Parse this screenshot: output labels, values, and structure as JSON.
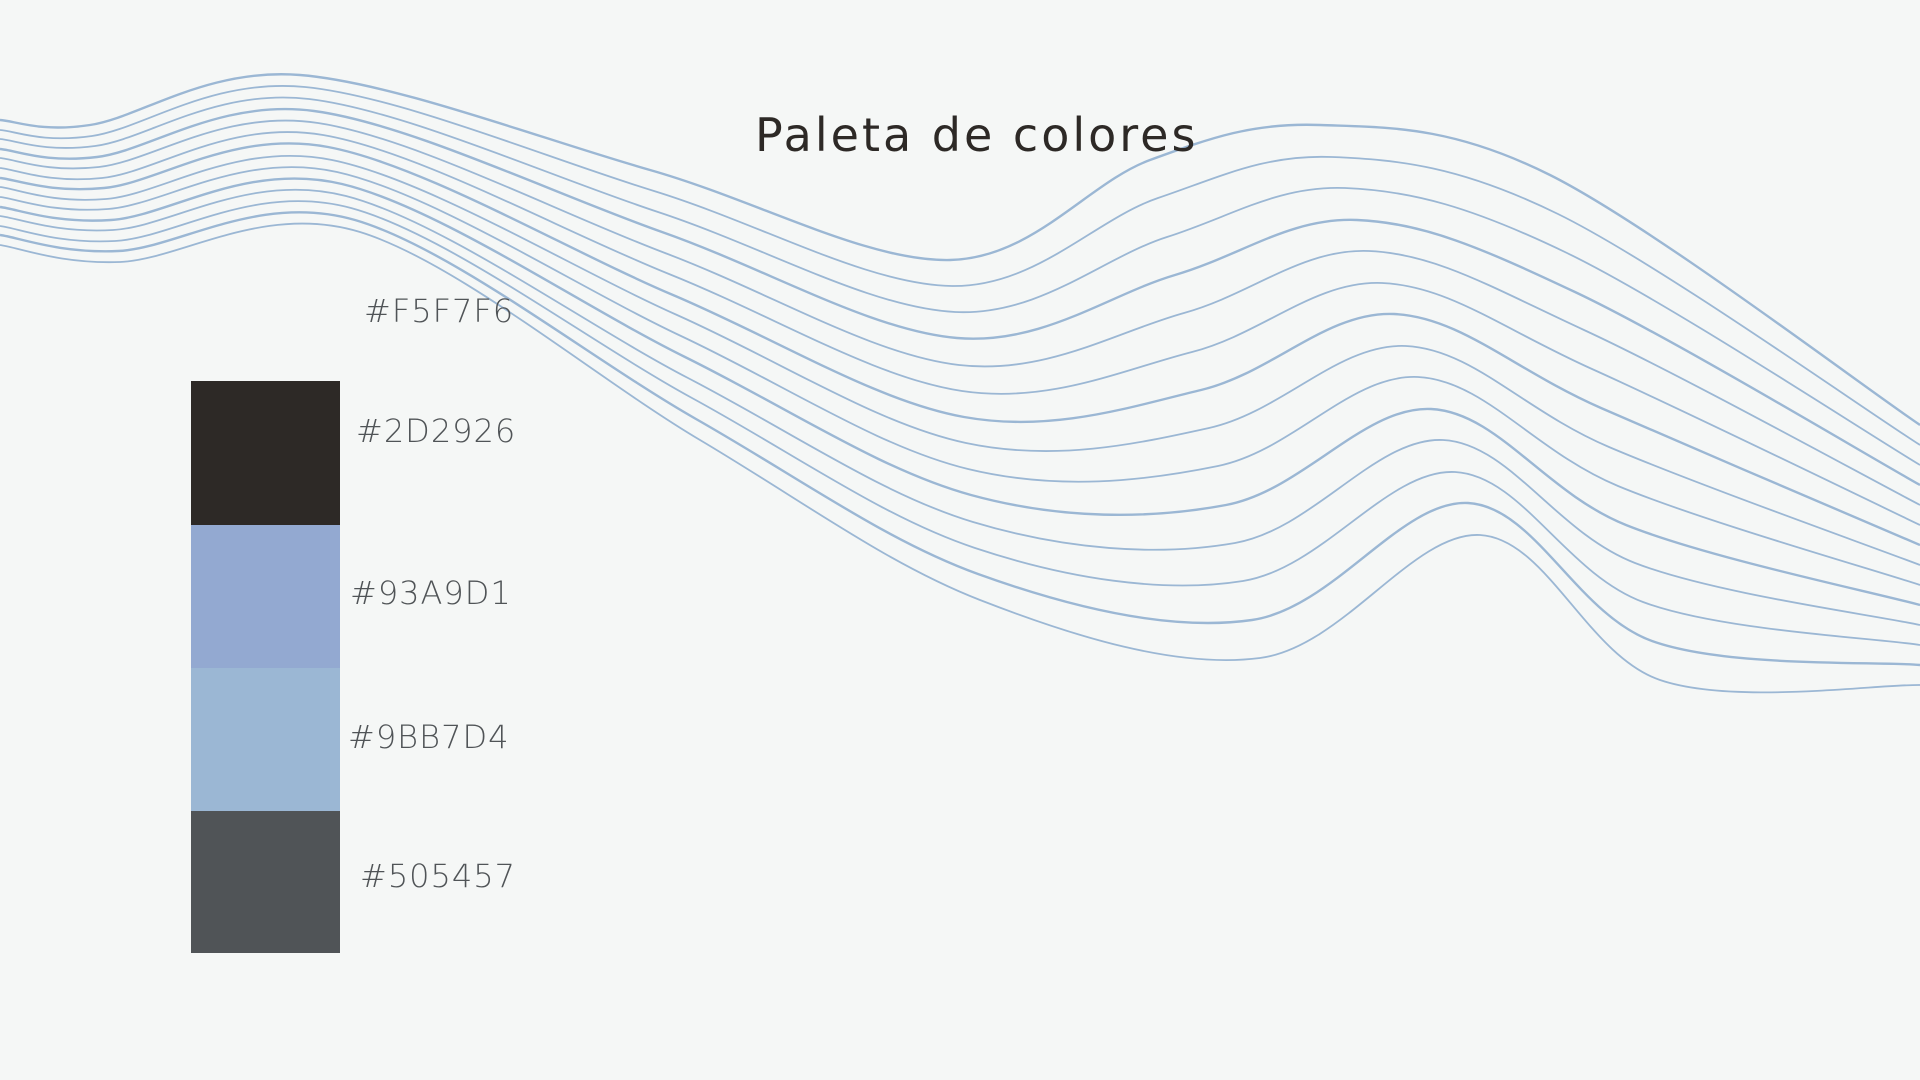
{
  "title": "Paleta de colores",
  "wave_color": "#9BB7D4",
  "palette": [
    {
      "hex": "#F5F7F6",
      "label": "#F5F7F6"
    },
    {
      "hex": "#2D2926",
      "label": "#2D2926"
    },
    {
      "hex": "#93A9D1",
      "label": "#93A9D1"
    },
    {
      "hex": "#9BB7D4",
      "label": "#9BB7D4"
    },
    {
      "hex": "#505457",
      "label": "#505457"
    }
  ]
}
